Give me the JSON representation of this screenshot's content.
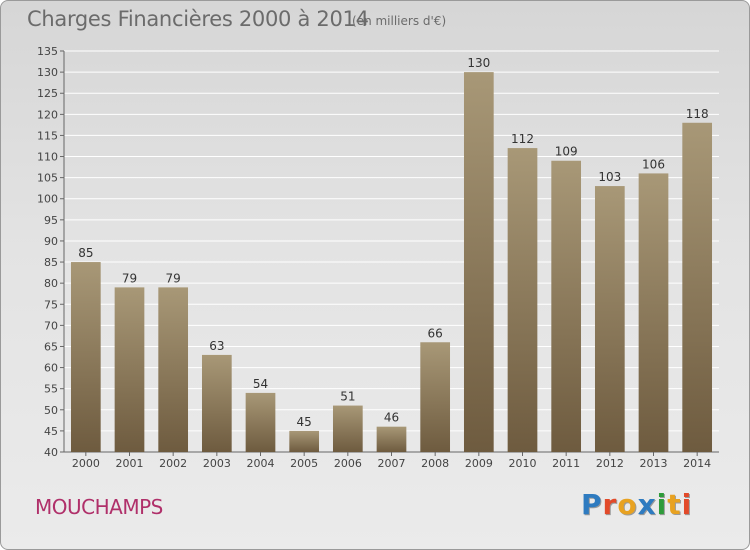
{
  "header": {
    "title": "Charges Financières 2000 à 2014",
    "subtitle": "(en milliers d'€)"
  },
  "footer": {
    "commune": "MOUCHAMPS",
    "logo": "Proxiti"
  },
  "colors": {
    "bar_light": "#a89877",
    "bar_dark": "#6e5b3f",
    "commune_text": "#b0306a",
    "logo_letters": [
      "#2e7bc0",
      "#e24a2a",
      "#e8a221",
      "#2e7bc0",
      "#2e9b3a",
      "#e8a221",
      "#e24a2a"
    ]
  },
  "chart_data": {
    "type": "bar",
    "categories": [
      "2000",
      "2001",
      "2002",
      "2003",
      "2004",
      "2005",
      "2006",
      "2007",
      "2008",
      "2009",
      "2010",
      "2011",
      "2012",
      "2013",
      "2014"
    ],
    "values": [
      85,
      79,
      79,
      63,
      54,
      45,
      51,
      46,
      66,
      130,
      112,
      109,
      103,
      106,
      118
    ],
    "title": "Charges Financières 2000 à 2014",
    "subtitle": "(en milliers d'€)",
    "ylim": [
      40,
      135
    ],
    "yticks": [
      40,
      45,
      50,
      55,
      60,
      65,
      70,
      75,
      80,
      85,
      90,
      95,
      100,
      105,
      110,
      115,
      120,
      125,
      130,
      135
    ],
    "grid": true
  }
}
